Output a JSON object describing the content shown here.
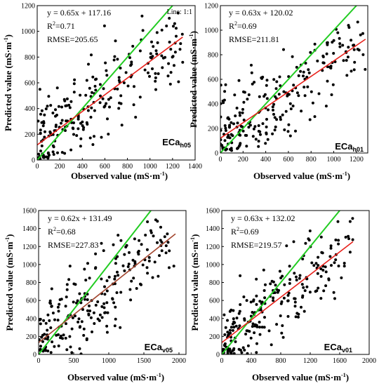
{
  "colors": {
    "fit": "#e8201a",
    "fit_v05": "#a2452e",
    "one_to_one": "#22cc22",
    "points": "#000000"
  },
  "chart_data": [
    {
      "type": "scatter",
      "panel": "ECa_h05",
      "label_main": "ECa",
      "label_sub": "h05",
      "xlabel": "Observed value (mS·m",
      "ylabel": "Predicted value (mS·m",
      "unit_sup": "-1",
      "unit_close": ")",
      "xlim": [
        0,
        1400
      ],
      "ylim": [
        0,
        1200
      ],
      "xticks": [
        0,
        200,
        400,
        600,
        800,
        1000,
        1200,
        1400
      ],
      "yticks": [
        0,
        200,
        400,
        600,
        800,
        1000,
        1200
      ],
      "equation": "y = 0.65x + 117.16",
      "r2_label": "R",
      "r2_sup": "2",
      "r2_value": "=0.71",
      "rmse": "RMSE=205.65",
      "line_label": "Line: 1:1",
      "fit": {
        "slope": 0.65,
        "intercept": 117.16
      },
      "seed": 11,
      "n": 230,
      "xmax": 1290
    },
    {
      "type": "scatter",
      "panel": "ECa_h01",
      "label_main": "ECa",
      "label_sub": "h01",
      "xlabel": "Observed value (mS·m",
      "ylabel": "Predicted value (mS·m",
      "unit_sup": "-1",
      "unit_close": ")",
      "xlim": [
        0,
        1300
      ],
      "ylim": [
        0,
        1200
      ],
      "xticks": [
        0,
        200,
        400,
        600,
        800,
        1000,
        1200
      ],
      "yticks": [
        0,
        200,
        400,
        600,
        800,
        1000,
        1200
      ],
      "equation": "y = 0.63x + 120.02",
      "r2_label": "R",
      "r2_sup": "2",
      "r2_value": "=0.69",
      "rmse": "RMSE=211.81",
      "fit": {
        "slope": 0.63,
        "intercept": 120.02
      },
      "seed": 23,
      "n": 230,
      "xmax": 1280
    },
    {
      "type": "scatter",
      "panel": "ECa_v05",
      "label_main": "ECa",
      "label_sub": "v05",
      "xlabel": "Observed value (mS·m",
      "ylabel": "Predicted value (mS·m",
      "unit_sup": "-1",
      "unit_close": ")",
      "xlim": [
        0,
        2100
      ],
      "ylim": [
        0,
        1600
      ],
      "xticks": [
        0,
        500,
        1000,
        1500,
        2000
      ],
      "yticks": [
        0,
        200,
        400,
        600,
        800,
        1000,
        1200,
        1400,
        1600
      ],
      "equation": "y = 0.62x + 131.49",
      "r2_label": "R",
      "r2_sup": "2",
      "r2_value": "=0.68",
      "rmse": "RMSE=227.83",
      "fit": {
        "slope": 0.62,
        "intercept": 131.49
      },
      "seed": 37,
      "n": 220,
      "xmax": 1950
    },
    {
      "type": "scatter",
      "panel": "ECa_v01",
      "label_main": "ECa",
      "label_sub": "v01",
      "xlabel": "Observed value (mS·m",
      "ylabel": "Predicted value (mS·m",
      "unit_sup": "-1",
      "unit_close": ")",
      "xlim": [
        0,
        2000
      ],
      "ylim": [
        0,
        1600
      ],
      "xticks": [
        0,
        400,
        800,
        1200,
        1600,
        2000
      ],
      "yticks": [
        0,
        200,
        400,
        600,
        800,
        1000,
        1200,
        1400,
        1600
      ],
      "equation": "y = 0.63x + 132.02",
      "r2_label": "R",
      "r2_sup": "2",
      "r2_value": "=0.69",
      "rmse": "RMSE=219.57",
      "fit": {
        "slope": 0.63,
        "intercept": 132.02
      },
      "seed": 53,
      "n": 230,
      "xmax": 1780
    }
  ]
}
